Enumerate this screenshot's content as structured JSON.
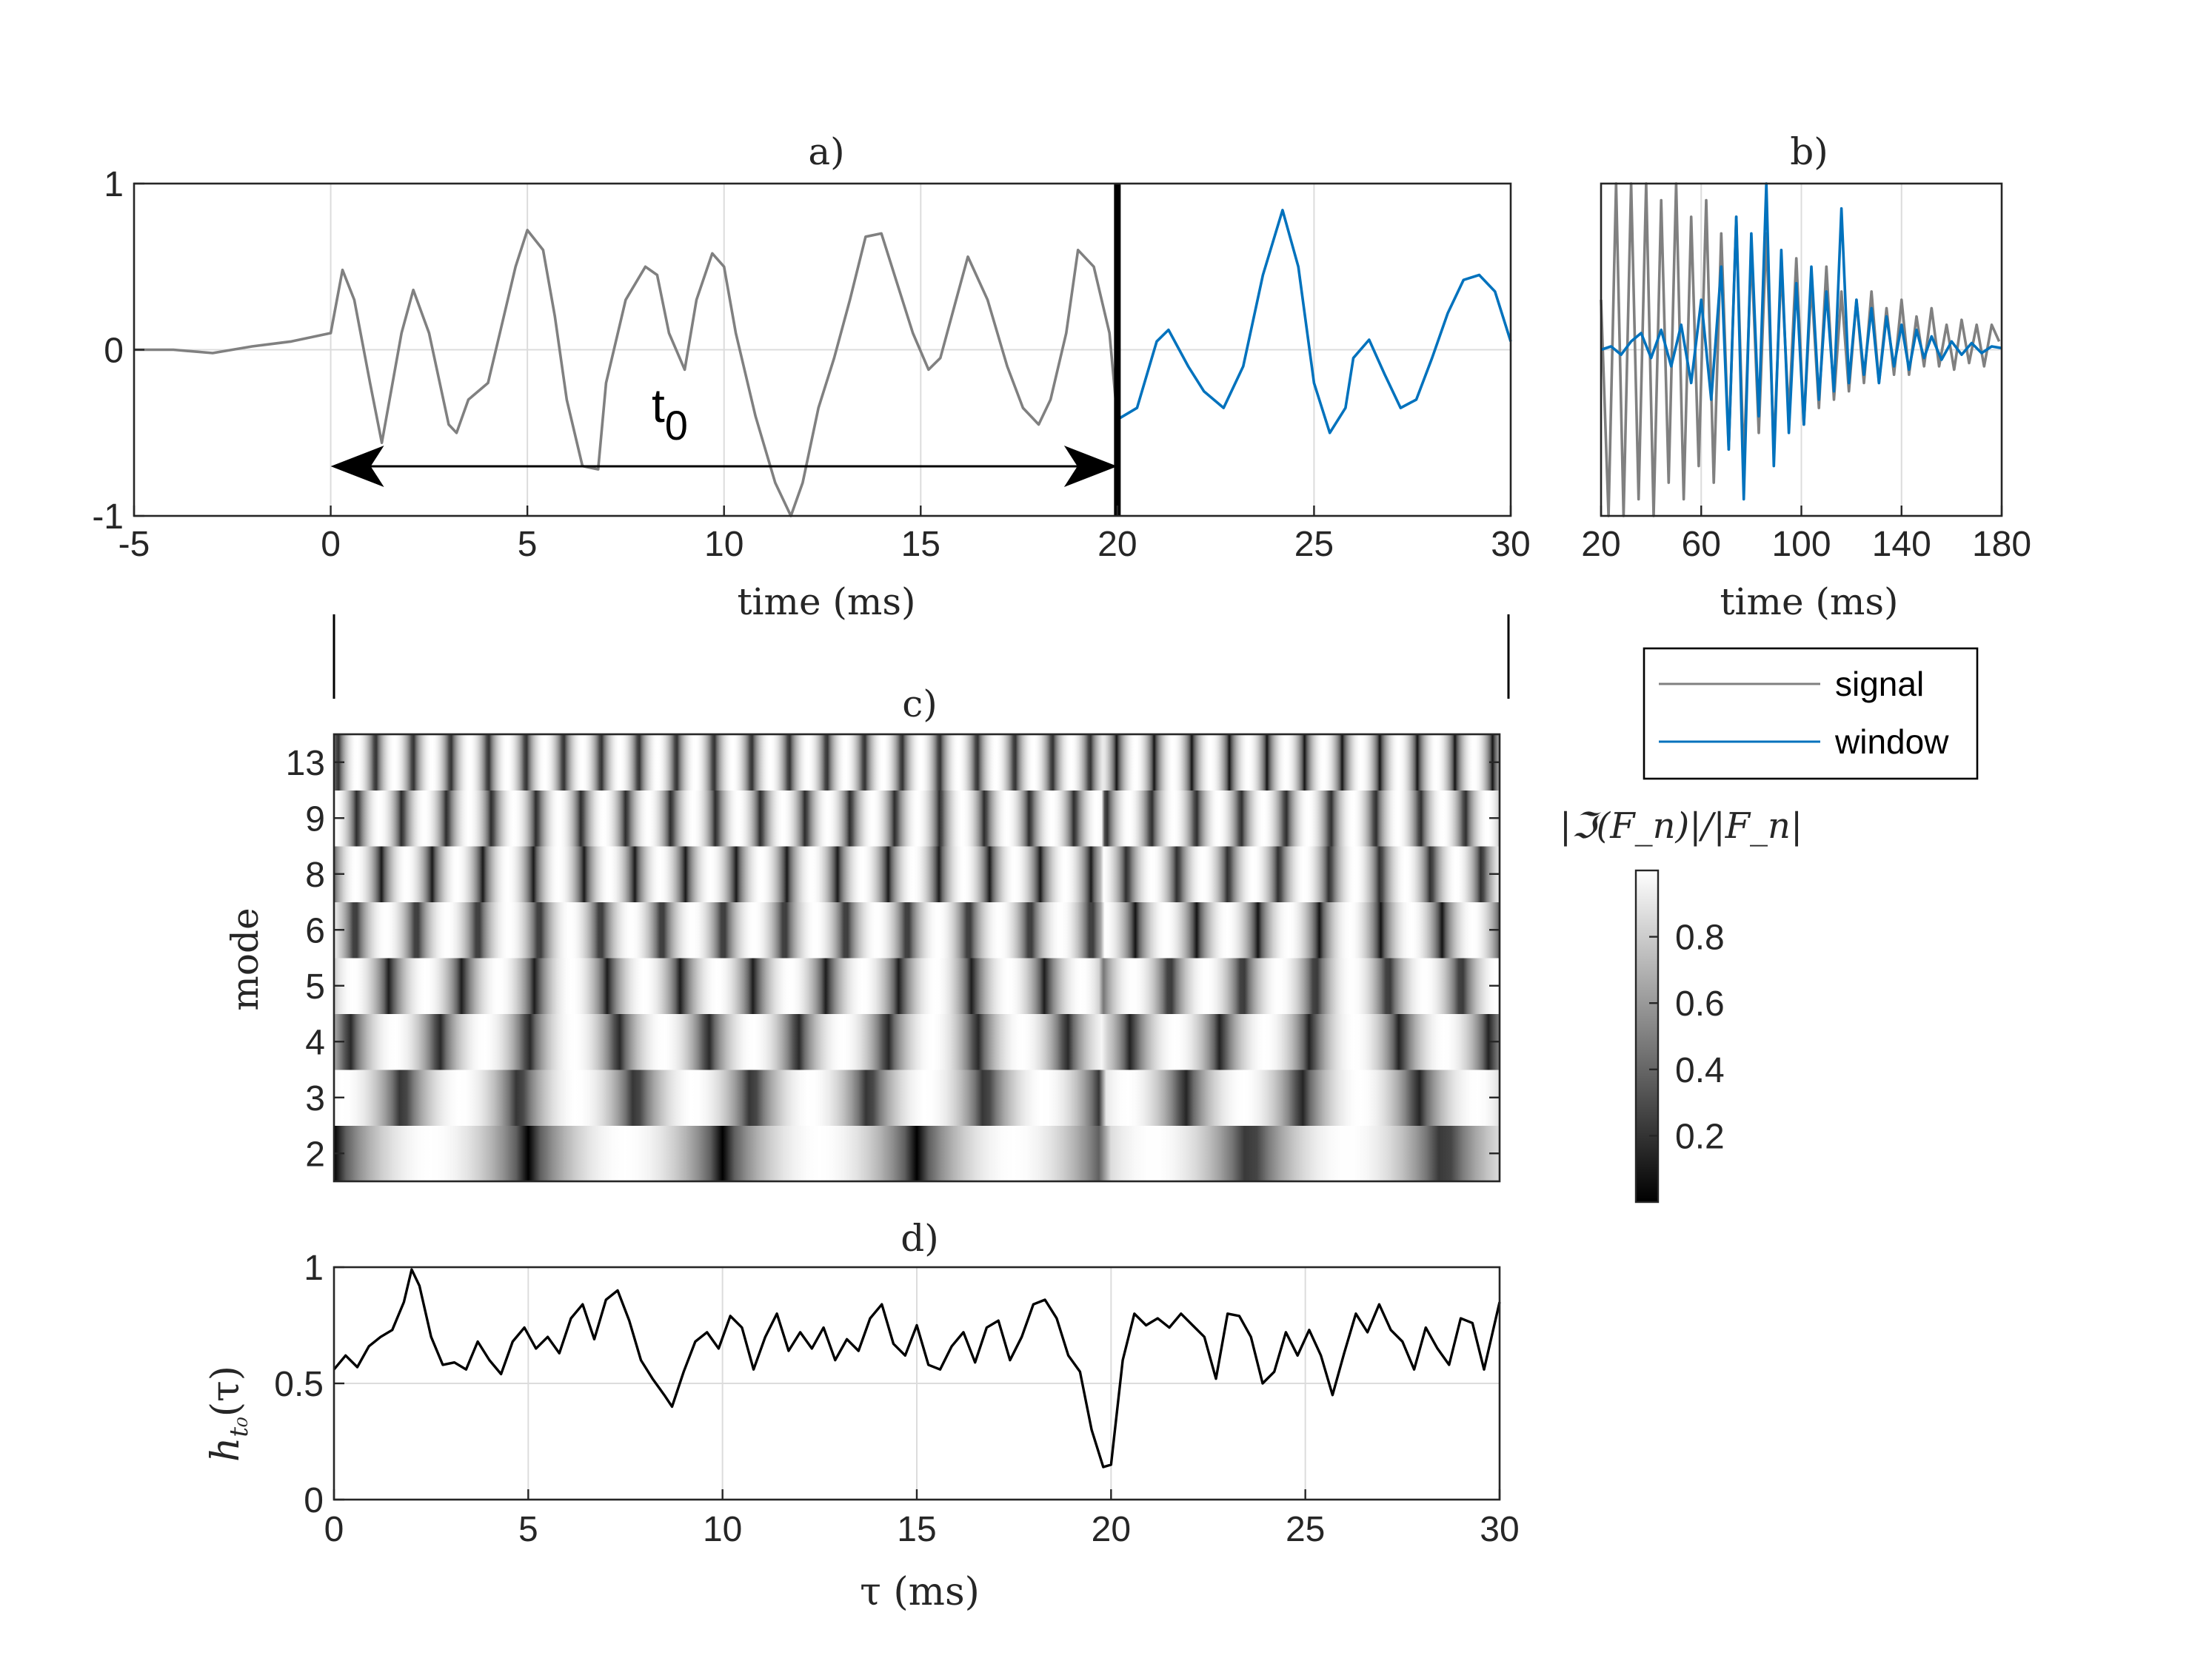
{
  "chart_data": [
    {
      "id": "a",
      "type": "line",
      "title": "a)",
      "xlabel": "time (ms)",
      "ylabel": "",
      "xlim": [
        -5,
        30
      ],
      "ylim": [
        -1,
        1
      ],
      "xticks": [
        "-5",
        "0",
        "5",
        "10",
        "15",
        "20",
        "25",
        "30"
      ],
      "yticks": [
        "-1",
        "0",
        "1"
      ],
      "grid": true,
      "annotations": [
        {
          "text": "t",
          "subscript": "0",
          "arrow_from_ms": 0,
          "arrow_to_ms": 20
        }
      ],
      "marker_line_x": 20,
      "series": [
        {
          "name": "signal",
          "color": "#808080",
          "x": [
            -5,
            -4,
            -3,
            -2,
            -1,
            0,
            0.3,
            0.6,
            1,
            1.3,
            1.8,
            2.1,
            2.5,
            3,
            3.2,
            3.5,
            4,
            4.3,
            4.7,
            5,
            5.4,
            5.7,
            6,
            6.4,
            6.8,
            7,
            7.5,
            8,
            8.3,
            8.6,
            9,
            9.3,
            9.7,
            10,
            10.3,
            10.8,
            11.3,
            11.7,
            12,
            12.4,
            12.8,
            13.2,
            13.6,
            14,
            14.4,
            14.8,
            15.2,
            15.5,
            15.9,
            16.2,
            16.7,
            17.2,
            17.6,
            18,
            18.3,
            18.7,
            19,
            19.4,
            19.8,
            20
          ],
          "y": [
            0,
            0,
            -0.02,
            0.02,
            0.05,
            0.1,
            0.48,
            0.3,
            -0.2,
            -0.56,
            0.1,
            0.36,
            0.1,
            -0.45,
            -0.5,
            -0.3,
            -0.2,
            0.1,
            0.5,
            0.72,
            0.6,
            0.2,
            -0.3,
            -0.7,
            -0.72,
            -0.2,
            0.3,
            0.5,
            0.45,
            0.1,
            -0.12,
            0.3,
            0.58,
            0.5,
            0.1,
            -0.4,
            -0.8,
            -1.0,
            -0.8,
            -0.35,
            -0.05,
            0.3,
            0.68,
            0.7,
            0.4,
            0.1,
            -0.12,
            -0.05,
            0.3,
            0.56,
            0.3,
            -0.1,
            -0.35,
            -0.45,
            -0.3,
            0.1,
            0.6,
            0.5,
            0.1,
            -0.42
          ]
        },
        {
          "name": "window",
          "color": "#0072BD",
          "x": [
            20,
            20.5,
            21,
            21.3,
            21.8,
            22.2,
            22.7,
            23.2,
            23.7,
            24.2,
            24.6,
            25,
            25.4,
            25.8,
            26,
            26.4,
            26.8,
            27.2,
            27.6,
            28,
            28.4,
            28.8,
            29.2,
            29.6,
            30
          ],
          "y": [
            -0.42,
            -0.35,
            0.05,
            0.12,
            -0.1,
            -0.25,
            -0.35,
            -0.1,
            0.45,
            0.84,
            0.5,
            -0.2,
            -0.5,
            -0.35,
            -0.05,
            0.06,
            -0.15,
            -0.35,
            -0.3,
            -0.05,
            0.22,
            0.42,
            0.45,
            0.35,
            0.05
          ]
        }
      ]
    },
    {
      "id": "b",
      "type": "line",
      "title": "b)",
      "xlabel": "time (ms)",
      "ylabel": "",
      "xlim": [
        20,
        180
      ],
      "ylim": [
        -1,
        1
      ],
      "xticks": [
        "20",
        "60",
        "100",
        "140",
        "180"
      ],
      "grid": true,
      "legend": {
        "placement": "below",
        "entries": [
          "signal",
          "window"
        ]
      },
      "series": [
        {
          "name": "signal",
          "color": "#808080",
          "x": [
            20,
            23,
            26,
            29,
            32,
            35,
            38,
            41,
            44,
            47,
            50,
            53,
            56,
            59,
            62,
            65,
            68,
            71,
            74,
            77,
            80,
            83,
            86,
            89,
            92,
            95,
            98,
            101,
            104,
            107,
            110,
            113,
            116,
            119,
            122,
            125,
            128,
            131,
            134,
            137,
            140,
            143,
            146,
            149,
            152,
            155,
            158,
            161,
            164,
            167,
            170,
            173,
            176,
            179
          ],
          "y": [
            0.3,
            -1,
            1,
            -1,
            1,
            -0.9,
            1,
            -1,
            0.9,
            -0.8,
            1,
            -0.9,
            0.8,
            -0.7,
            0.9,
            -0.8,
            0.7,
            -0.6,
            0.8,
            -0.7,
            0.6,
            -0.5,
            0.7,
            -0.6,
            0.5,
            -0.4,
            0.55,
            -0.45,
            0.4,
            -0.35,
            0.5,
            -0.3,
            0.35,
            -0.25,
            0.3,
            -0.2,
            0.35,
            -0.2,
            0.25,
            -0.15,
            0.3,
            -0.15,
            0.2,
            -0.1,
            0.25,
            -0.1,
            0.15,
            -0.12,
            0.18,
            -0.08,
            0.15,
            -0.1,
            0.15,
            0.05
          ]
        },
        {
          "name": "window",
          "color": "#0072BD",
          "x": [
            20,
            24,
            28,
            32,
            36,
            40,
            44,
            48,
            52,
            56,
            60,
            64,
            68,
            71,
            74,
            77,
            80,
            83,
            86,
            89,
            92,
            95,
            98,
            101,
            104,
            107,
            110,
            113,
            116,
            119,
            122,
            125,
            128,
            131,
            134,
            137,
            140,
            143,
            146,
            149,
            152,
            156,
            160,
            164,
            168,
            172,
            176,
            180
          ],
          "y": [
            0,
            0.02,
            -0.03,
            0.05,
            0.1,
            -0.05,
            0.12,
            -0.1,
            0.15,
            -0.2,
            0.3,
            -0.3,
            0.5,
            -0.6,
            0.8,
            -0.9,
            0.7,
            -0.4,
            1.0,
            -0.7,
            0.6,
            -0.5,
            0.4,
            -0.45,
            0.5,
            -0.3,
            0.35,
            -0.25,
            0.85,
            -0.2,
            0.3,
            -0.15,
            0.25,
            -0.2,
            0.2,
            -0.1,
            0.15,
            -0.12,
            0.12,
            -0.05,
            0.08,
            -0.06,
            0.05,
            -0.03,
            0.04,
            -0.02,
            0.02,
            0.01
          ]
        }
      ]
    },
    {
      "id": "c",
      "type": "heatmap",
      "title": "c)",
      "xlabel": "",
      "ylabel": "mode",
      "xlim": [
        0,
        30
      ],
      "rows": [
        "2",
        "3",
        "4",
        "5",
        "6",
        "8",
        "9",
        "13"
      ],
      "row_stripe_counts": [
        6,
        10,
        13,
        16,
        19,
        23,
        26,
        31
      ],
      "colorbar": {
        "label": "|ℑ(F_n)|/|F_n|",
        "ticks": [
          "0.2",
          "0.4",
          "0.6",
          "0.8"
        ],
        "range": [
          0,
          1
        ],
        "colormap": "gray"
      }
    },
    {
      "id": "d",
      "type": "line",
      "title": "d)",
      "xlabel": "τ (ms)",
      "ylabel": "h",
      "xlim": [
        0,
        30
      ],
      "ylim": [
        0,
        1
      ],
      "xticks": [
        "0",
        "5",
        "10",
        "15",
        "20",
        "25",
        "30"
      ],
      "yticks": [
        "0",
        "0.5",
        "1"
      ],
      "grid": true,
      "series": [
        {
          "name": "",
          "color": "#000000",
          "x": [
            0,
            0.3,
            0.6,
            0.9,
            1.2,
            1.5,
            1.8,
            2.0,
            2.2,
            2.5,
            2.8,
            3.1,
            3.4,
            3.7,
            4.0,
            4.3,
            4.6,
            4.9,
            5.2,
            5.5,
            5.8,
            6.1,
            6.4,
            6.7,
            7.0,
            7.3,
            7.6,
            7.9,
            8.2,
            8.5,
            8.7,
            9.0,
            9.3,
            9.6,
            9.9,
            10.2,
            10.5,
            10.8,
            11.1,
            11.4,
            11.7,
            12.0,
            12.3,
            12.6,
            12.9,
            13.2,
            13.5,
            13.8,
            14.1,
            14.4,
            14.7,
            15.0,
            15.3,
            15.6,
            15.9,
            16.2,
            16.5,
            16.8,
            17.1,
            17.4,
            17.7,
            18.0,
            18.3,
            18.6,
            18.9,
            19.2,
            19.5,
            19.8,
            20.0,
            20.3,
            20.6,
            20.9,
            21.2,
            21.5,
            21.8,
            22.1,
            22.4,
            22.7,
            23.0,
            23.3,
            23.6,
            23.9,
            24.2,
            24.5,
            24.8,
            25.1,
            25.4,
            25.7,
            26.0,
            26.3,
            26.6,
            26.9,
            27.2,
            27.5,
            27.8,
            28.1,
            28.4,
            28.7,
            29.0,
            29.3,
            29.6,
            30.0
          ],
          "y": [
            0.56,
            0.62,
            0.57,
            0.66,
            0.7,
            0.73,
            0.85,
            0.99,
            0.92,
            0.7,
            0.58,
            0.59,
            0.56,
            0.68,
            0.6,
            0.54,
            0.68,
            0.74,
            0.65,
            0.7,
            0.63,
            0.78,
            0.84,
            0.69,
            0.86,
            0.9,
            0.77,
            0.6,
            0.52,
            0.45,
            0.4,
            0.55,
            0.68,
            0.72,
            0.65,
            0.79,
            0.74,
            0.56,
            0.7,
            0.8,
            0.64,
            0.72,
            0.65,
            0.74,
            0.6,
            0.69,
            0.64,
            0.78,
            0.84,
            0.67,
            0.62,
            0.75,
            0.58,
            0.56,
            0.66,
            0.72,
            0.59,
            0.74,
            0.77,
            0.6,
            0.7,
            0.84,
            0.86,
            0.78,
            0.62,
            0.55,
            0.3,
            0.14,
            0.15,
            0.6,
            0.8,
            0.75,
            0.78,
            0.74,
            0.8,
            0.75,
            0.7,
            0.52,
            0.8,
            0.79,
            0.7,
            0.5,
            0.55,
            0.72,
            0.62,
            0.73,
            0.62,
            0.45,
            0.63,
            0.8,
            0.72,
            0.84,
            0.73,
            0.68,
            0.56,
            0.74,
            0.65,
            0.58,
            0.78,
            0.76,
            0.56,
            0.85
          ]
        }
      ]
    }
  ]
}
